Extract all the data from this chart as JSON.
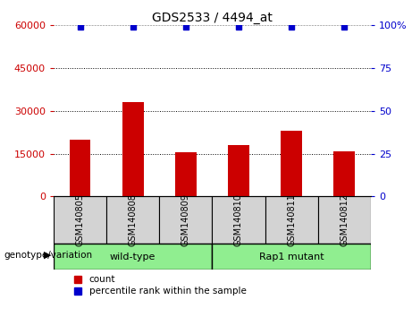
{
  "title": "GDS2533 / 4494_at",
  "samples": [
    "GSM140805",
    "GSM140808",
    "GSM140809",
    "GSM140810",
    "GSM140811",
    "GSM140812"
  ],
  "counts": [
    20000,
    33000,
    15500,
    18000,
    23000,
    16000
  ],
  "groups": [
    {
      "label": "wild-type",
      "indices": [
        0,
        1,
        2
      ],
      "color": "#90EE90"
    },
    {
      "label": "Rap1 mutant",
      "indices": [
        3,
        4,
        5
      ],
      "color": "#90EE90"
    }
  ],
  "group_label": "genotype/variation",
  "bar_color": "#CC0000",
  "dot_color": "#0000CC",
  "left_axis_color": "#CC0000",
  "right_axis_color": "#0000CC",
  "left_yticks": [
    0,
    15000,
    30000,
    45000,
    60000
  ],
  "right_yticks": [
    0,
    25,
    50,
    75,
    100
  ],
  "right_ytick_labels": [
    "0",
    "25",
    "50",
    "75",
    "100%"
  ],
  "ylim_left": [
    0,
    60000
  ],
  "ylim_right": [
    0,
    100
  ],
  "bg_color": "#ffffff",
  "label_box_color": "#d3d3d3",
  "legend_count_label": "count",
  "legend_percentile_label": "percentile rank within the sample",
  "bar_width": 0.4
}
